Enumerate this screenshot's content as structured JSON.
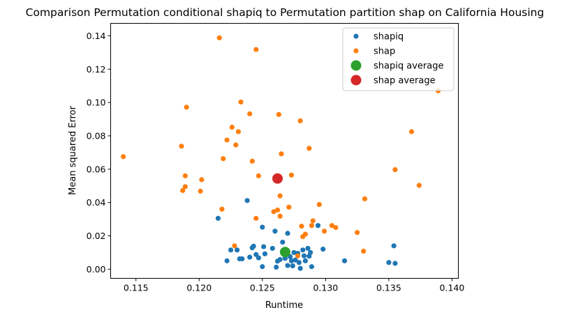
{
  "chart_data": {
    "type": "scatter",
    "title": "Comparison Permutation conditional shapiq to Permutation partition shap on California Housing",
    "xlabel": "Runtime",
    "ylabel": "Mean squared Error",
    "xlim": [
      0.113,
      0.1405
    ],
    "ylim": [
      -0.0055,
      0.1475
    ],
    "xticks": [
      "0.115",
      "0.120",
      "0.125",
      "0.130",
      "0.135",
      "0.140"
    ],
    "yticks": [
      "0.00",
      "0.02",
      "0.04",
      "0.06",
      "0.08",
      "0.10",
      "0.12",
      "0.14"
    ],
    "grid": false,
    "legend_position": "top-right",
    "colors": {
      "shapiq": "#1f77b4",
      "shap": "#ff7f0e",
      "shapiq_average": "#2ca02c",
      "shap_average": "#d62728"
    },
    "series": [
      {
        "name": "shapiq",
        "points": [
          [
            0.1215,
            0.0305
          ],
          [
            0.1222,
            0.005
          ],
          [
            0.1225,
            0.0115
          ],
          [
            0.123,
            0.0115
          ],
          [
            0.1232,
            0.0062
          ],
          [
            0.1234,
            0.0062
          ],
          [
            0.1238,
            0.0412
          ],
          [
            0.124,
            0.0072
          ],
          [
            0.1242,
            0.0128
          ],
          [
            0.1243,
            0.0138
          ],
          [
            0.1245,
            0.0088
          ],
          [
            0.1247,
            0.0068
          ],
          [
            0.125,
            0.0252
          ],
          [
            0.125,
            0.0015
          ],
          [
            0.1251,
            0.0135
          ],
          [
            0.1252,
            0.0092
          ],
          [
            0.1258,
            0.0125
          ],
          [
            0.126,
            0.0228
          ],
          [
            0.1261,
            0.0012
          ],
          [
            0.1262,
            0.0048
          ],
          [
            0.1264,
            0.0058
          ],
          [
            0.1266,
            0.0162
          ],
          [
            0.1268,
            0.0065
          ],
          [
            0.127,
            0.0215
          ],
          [
            0.127,
            0.0022
          ],
          [
            0.1272,
            0.0075
          ],
          [
            0.1273,
            0.005
          ],
          [
            0.1275,
            0.01
          ],
          [
            0.1276,
            0.0055
          ],
          [
            0.1278,
            0.0095
          ],
          [
            0.1279,
            0.004
          ],
          [
            0.128,
            0.0005
          ],
          [
            0.1282,
            0.0115
          ],
          [
            0.1283,
            0.008
          ],
          [
            0.1284,
            0.005
          ],
          [
            0.1286,
            0.0125
          ],
          [
            0.1287,
            0.0078
          ],
          [
            0.1288,
            0.01
          ],
          [
            0.1289,
            0.0015
          ],
          [
            0.1294,
            0.0262
          ],
          [
            0.1298,
            0.012
          ],
          [
            0.1315,
            0.005
          ],
          [
            0.135,
            0.004
          ],
          [
            0.1354,
            0.014
          ],
          [
            0.1355,
            0.0035
          ],
          [
            0.1274,
            0.002
          ]
        ]
      },
      {
        "name": "shap",
        "points": [
          [
            0.114,
            0.0675
          ],
          [
            0.1186,
            0.0738
          ],
          [
            0.1187,
            0.0472
          ],
          [
            0.1189,
            0.056
          ],
          [
            0.1189,
            0.0495
          ],
          [
            0.119,
            0.0972
          ],
          [
            0.1201,
            0.0468
          ],
          [
            0.1202,
            0.0537
          ],
          [
            0.1216,
            0.1388
          ],
          [
            0.1218,
            0.036
          ],
          [
            0.1219,
            0.0663
          ],
          [
            0.1222,
            0.0775
          ],
          [
            0.1226,
            0.0852
          ],
          [
            0.1228,
            0.014
          ],
          [
            0.1229,
            0.0745
          ],
          [
            0.1231,
            0.0825
          ],
          [
            0.1233,
            0.1003
          ],
          [
            0.124,
            0.0932
          ],
          [
            0.1242,
            0.0648
          ],
          [
            0.1245,
            0.1318
          ],
          [
            0.1245,
            0.0305
          ],
          [
            0.1247,
            0.056
          ],
          [
            0.1259,
            0.0345
          ],
          [
            0.1262,
            0.0355
          ],
          [
            0.1263,
            0.0928
          ],
          [
            0.1264,
            0.0318
          ],
          [
            0.1264,
            0.044
          ],
          [
            0.1265,
            0.0692
          ],
          [
            0.1271,
            0.0372
          ],
          [
            0.1273,
            0.0565
          ],
          [
            0.1278,
            0.008
          ],
          [
            0.128,
            0.089
          ],
          [
            0.1281,
            0.0258
          ],
          [
            0.1282,
            0.0195
          ],
          [
            0.1284,
            0.021
          ],
          [
            0.1287,
            0.0725
          ],
          [
            0.1289,
            0.0262
          ],
          [
            0.129,
            0.029
          ],
          [
            0.1295,
            0.0388
          ],
          [
            0.1299,
            0.0228
          ],
          [
            0.1305,
            0.0262
          ],
          [
            0.1308,
            0.025
          ],
          [
            0.1325,
            0.022
          ],
          [
            0.133,
            0.0108
          ],
          [
            0.1331,
            0.0422
          ],
          [
            0.1355,
            0.0597
          ],
          [
            0.1368,
            0.0825
          ],
          [
            0.1374,
            0.0503
          ],
          [
            0.1389,
            0.107
          ]
        ]
      },
      {
        "name": "shapiq average",
        "points": [
          [
            0.1268,
            0.0103
          ]
        ]
      },
      {
        "name": "shap average",
        "points": [
          [
            0.1262,
            0.0544
          ]
        ]
      }
    ]
  }
}
